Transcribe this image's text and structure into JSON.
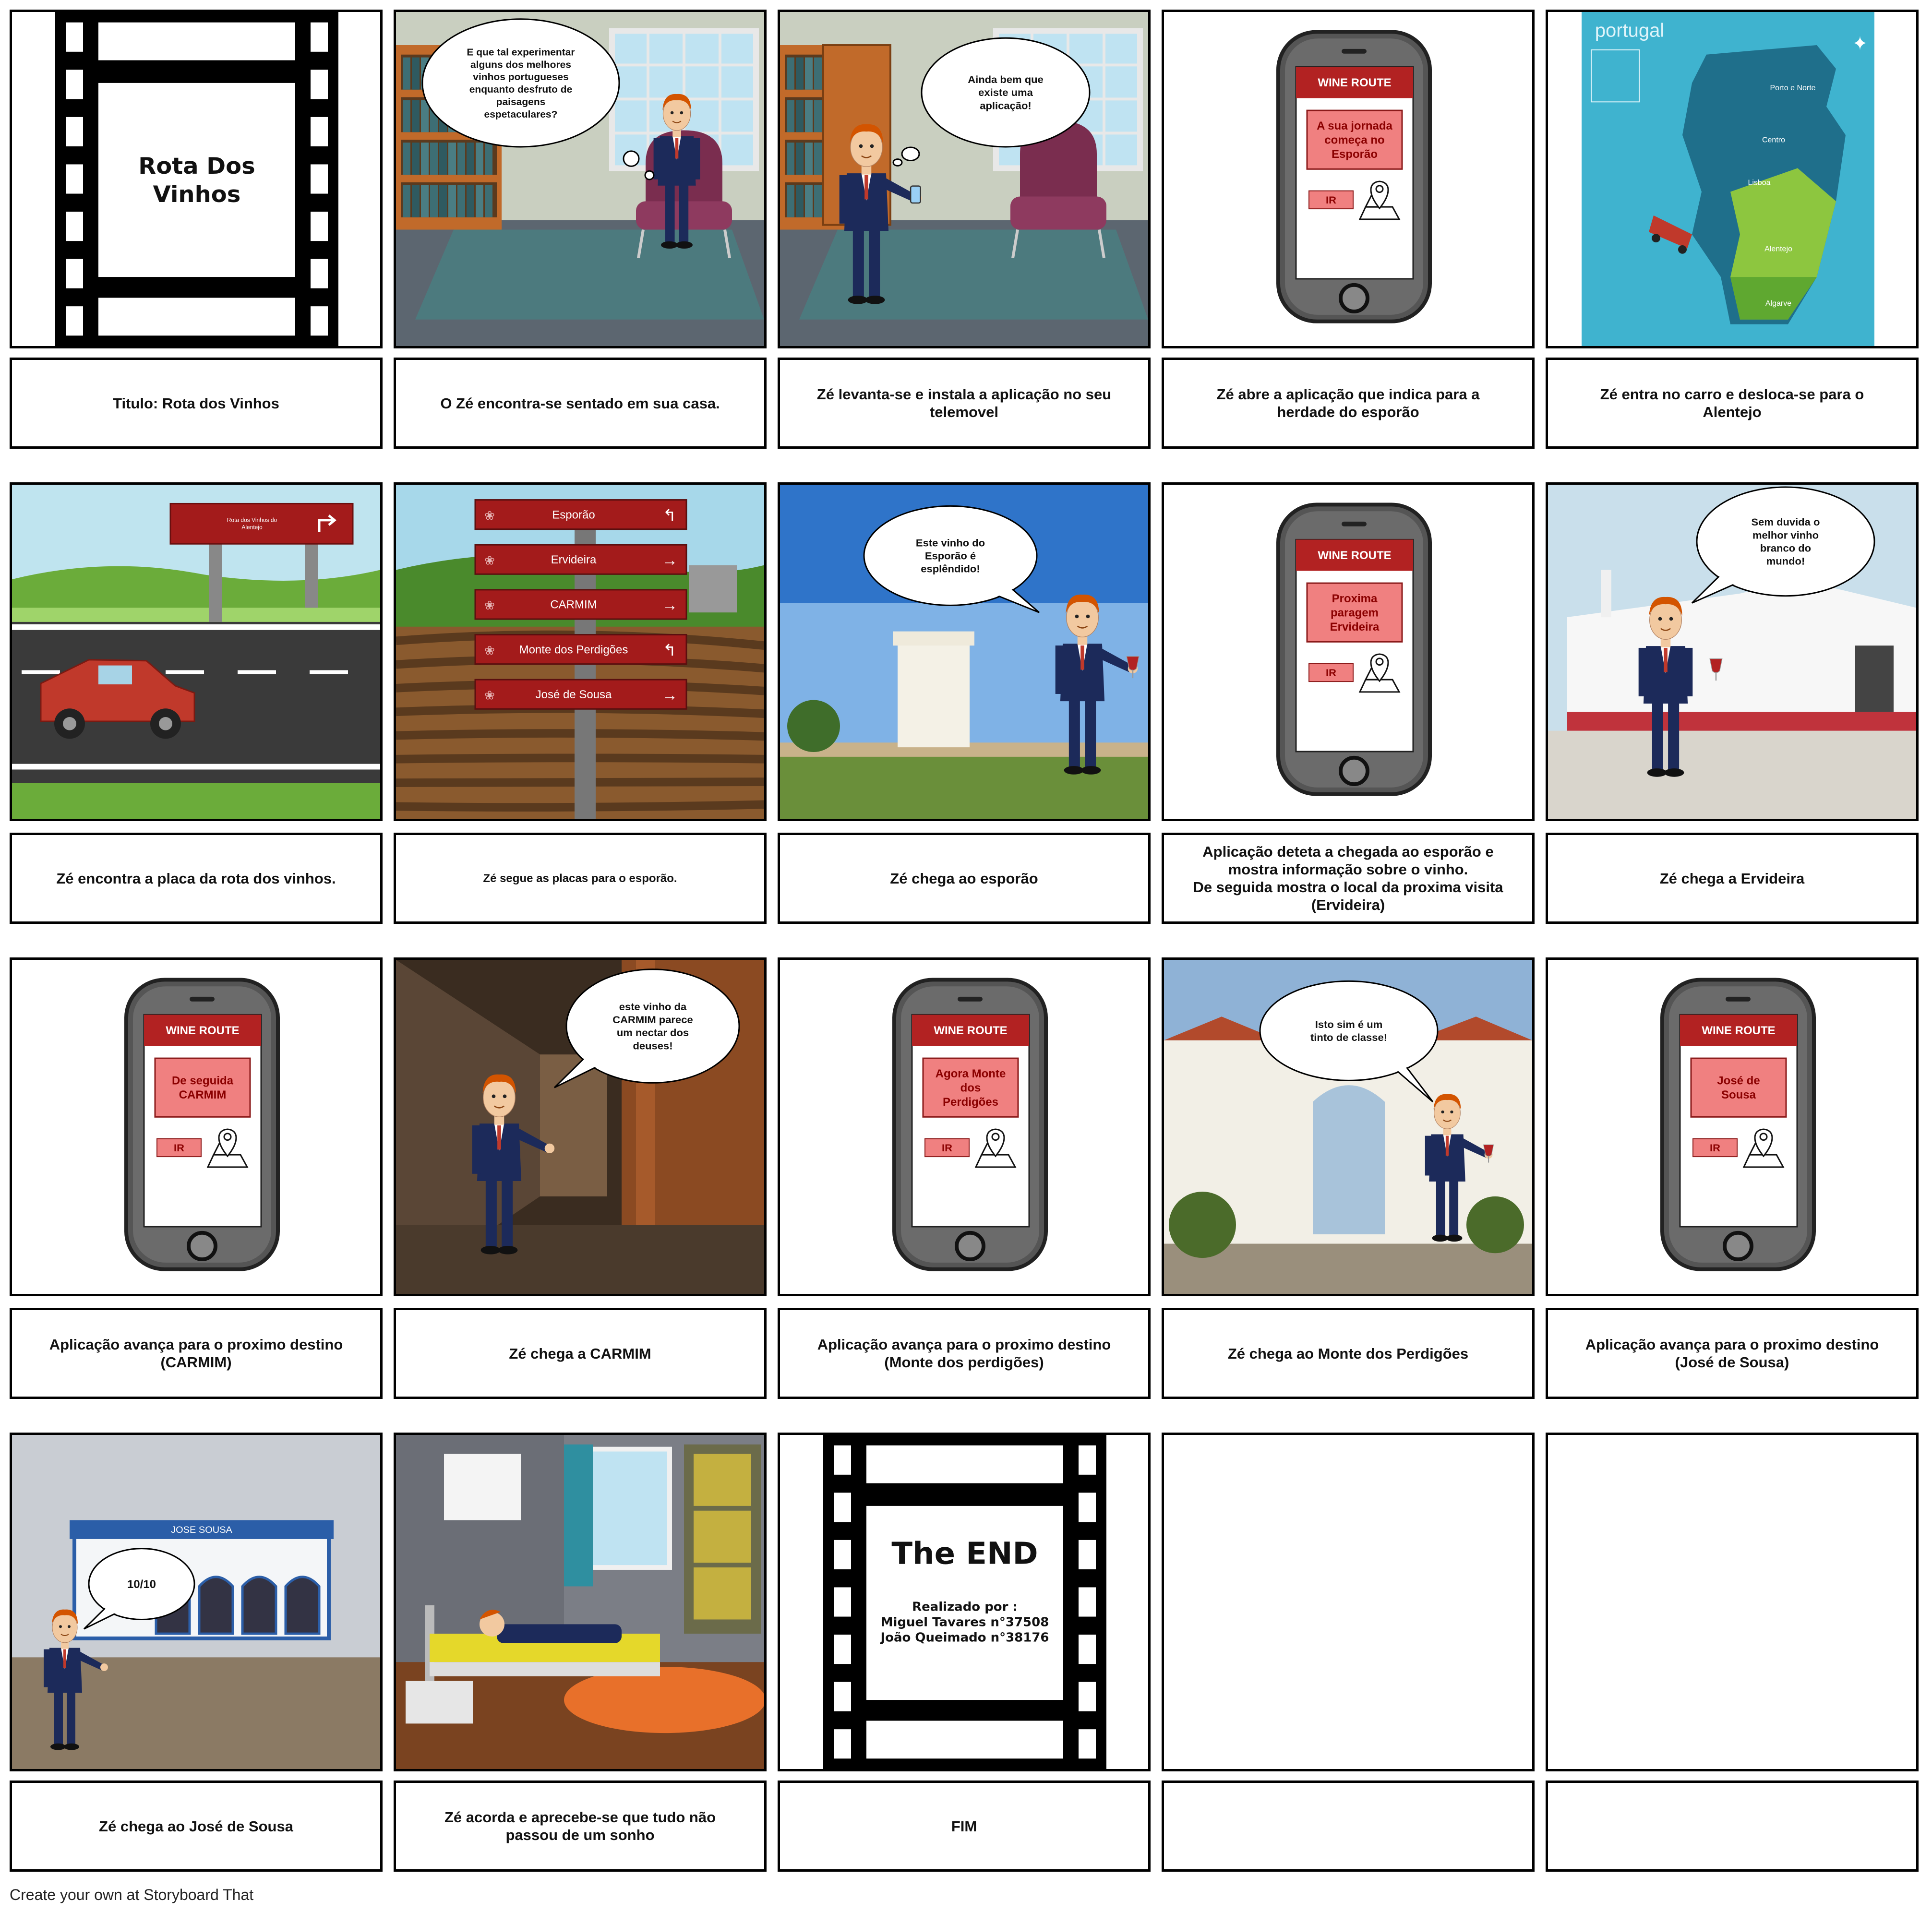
{
  "panels": [
    {
      "scene_title": "Rota Dos\nVinhos",
      "caption": "Titulo: Rota dos Vinhos"
    },
    {
      "speech": "E que tal experimentar\nalguns dos melhores\nvinhos portugueses\nenquanto desfruto de\npaisagens\nespetaculares?",
      "caption": "O Zé encontra-se sentado em sua casa."
    },
    {
      "speech": "Ainda bem que\nexiste uma\naplicação!",
      "caption": "Zé levanta-se e instala a aplicação no seu\ntelemovel"
    },
    {
      "app_header": "WINE ROUTE",
      "app_message": "A sua jornada\ncomeça no\nEsporão",
      "app_button": "IR",
      "caption": "Zé abre a aplicação que indica para a\nherdade do esporão"
    },
    {
      "map_title": "portugal",
      "map_regions": [
        "Porto e Norte",
        "Centro",
        "Lisboa",
        "Alentejo",
        "Algarve"
      ],
      "caption": "Zé entra no carro e desloca-se para o\nAlentejo"
    },
    {
      "sign_text": "Rota dos Vinhos do\nAlentejo",
      "caption": "Zé encontra a placa da rota dos vinhos."
    },
    {
      "signposts": [
        "Esporão",
        "Ervideira",
        "CARMIM",
        "Monte dos Perdigões",
        "José de Sousa"
      ],
      "caption": "Zé segue as placas para o esporão."
    },
    {
      "speech": "Este vinho do\nEsporão é\nesplêndido!",
      "caption": "Zé chega ao esporão"
    },
    {
      "app_header": "WINE ROUTE",
      "app_message": "Proxima\nparagem\nErvideira",
      "app_button": "IR",
      "caption": "Aplicação deteta a chegada ao esporão e\nmostra informação sobre o vinho.\nDe seguida mostra o local da proxima visita\n(Ervideira)"
    },
    {
      "speech": "Sem duvida o\nmelhor vinho\nbranco do\nmundo!",
      "caption": "Zé chega a Ervideira"
    },
    {
      "app_header": "WINE ROUTE",
      "app_message": "De seguida\nCARMIM",
      "app_button": "IR",
      "caption": "Aplicação avança para o proximo destino\n(CARMIM)"
    },
    {
      "speech": "este vinho da\nCARMIM parece\num nectar dos\ndeuses!",
      "caption": "Zé chega a CARMIM"
    },
    {
      "app_header": "WINE ROUTE",
      "app_message": "Agora Monte\ndos\nPerdigões",
      "app_button": "IR",
      "caption": "Aplicação avança para o proximo destino\n(Monte dos perdigões)"
    },
    {
      "speech": "Isto sim é um\ntinto de classe!",
      "caption": "Zé chega ao Monte dos Perdigões"
    },
    {
      "app_header": "WINE ROUTE",
      "app_message": "José de\nSousa",
      "app_button": "IR",
      "caption": "Aplicação avança para o proximo destino\n(José de Sousa)"
    },
    {
      "speech": "10/10",
      "building_sign": "JOSE  SOUSA",
      "caption": "Zé chega ao José de Sousa"
    },
    {
      "caption": "Zé acorda e aprecebe-se que tudo não\npassou de um sonho"
    },
    {
      "scene_title": "The END",
      "credits": "Realizado por :\nMiguel Tavares n°37508\nJoão Queimado n°38176",
      "caption": "FIM"
    },
    {
      "caption": ""
    },
    {
      "caption": ""
    }
  ],
  "footer": "Create your own at Storyboard That",
  "colors": {
    "app_header": "#b22222",
    "app_box": "#f08080",
    "suit": "#1c2a5a",
    "sign_red": "#a31b1b"
  }
}
